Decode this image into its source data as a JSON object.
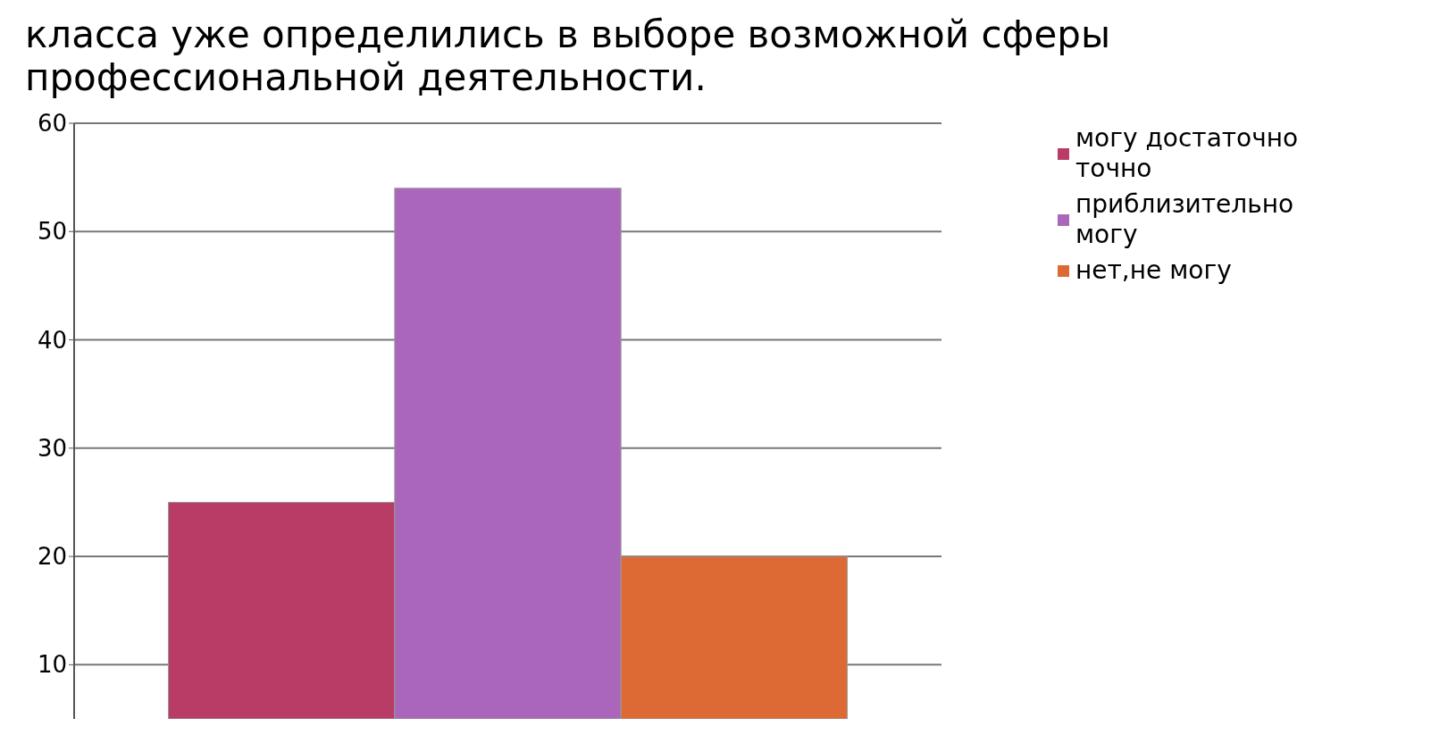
{
  "chart_data": {
    "type": "bar",
    "title": "класса уже определились в выборе возможной сферы профессиональной деятельности.",
    "categories": [
      null
    ],
    "series": [
      {
        "name": "могу достаточно точно",
        "color": "#b83c66",
        "values": [
          25
        ]
      },
      {
        "name": "приблизительно могу",
        "color": "#aa66bb",
        "values": [
          54
        ]
      },
      {
        "name": "нет,не могу",
        "color": "#dd6a35",
        "values": [
          20
        ]
      }
    ],
    "ylim": [
      5,
      60
    ],
    "yticks": [
      10,
      20,
      30,
      40,
      50,
      60
    ],
    "grid": "y",
    "legend": "right"
  }
}
